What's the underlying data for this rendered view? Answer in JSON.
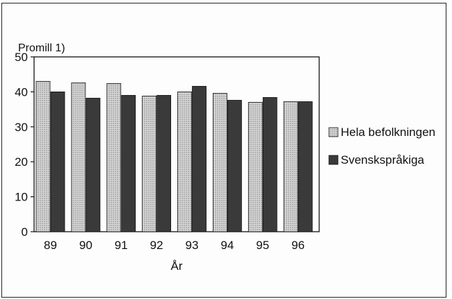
{
  "chart_data": {
    "type": "bar",
    "ylabel": "Promill 1)",
    "xlabel": "År",
    "categories": [
      "89",
      "90",
      "91",
      "92",
      "93",
      "94",
      "95",
      "96"
    ],
    "series": [
      {
        "name": "Hela befolkningen",
        "values": [
          43,
          42.6,
          42.4,
          38.8,
          40,
          39.6,
          37,
          37.2
        ],
        "color": "#c8c8c8",
        "pattern": "dotted"
      },
      {
        "name": "Svenskspråkiga",
        "values": [
          40,
          38.2,
          39,
          39,
          41.6,
          37.6,
          38.4,
          37.2
        ],
        "color": "#3a3a3a",
        "pattern": "solid"
      }
    ],
    "ylim": [
      0,
      50
    ],
    "yticks": [
      0,
      10,
      20,
      30,
      40,
      50
    ],
    "legend_position": "right",
    "grid": false
  }
}
